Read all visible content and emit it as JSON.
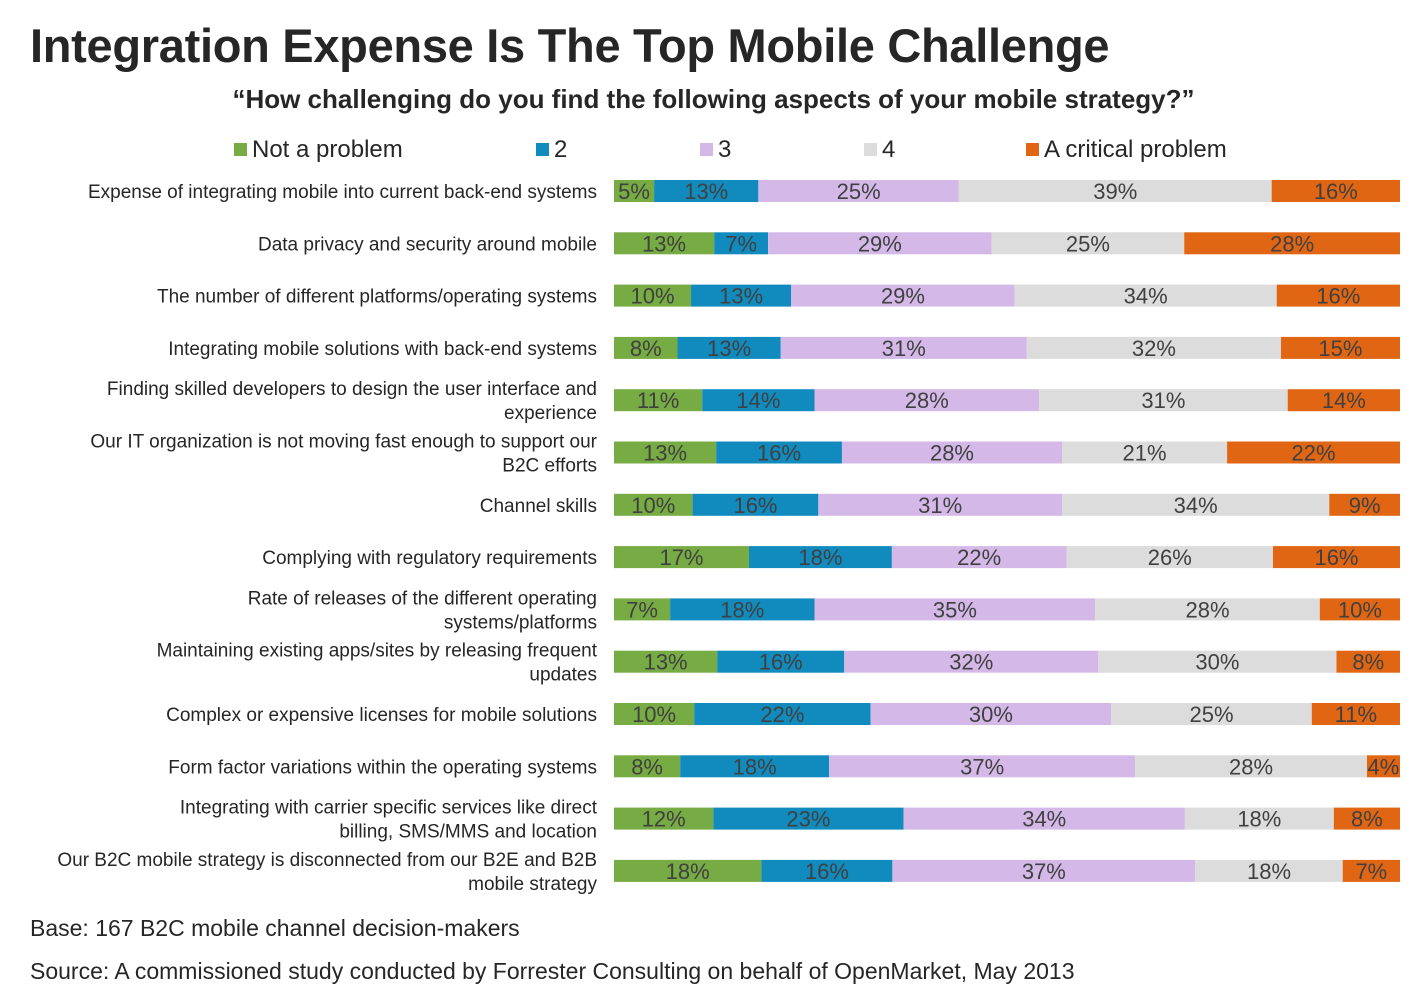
{
  "header": {
    "title": "Integration Expense Is The Top Mobile Challenge",
    "subtitle": "“How challenging do you find the following aspects of your mobile strategy?”"
  },
  "footer": {
    "base": "Base: 167 B2C mobile channel decision-makers",
    "source": "Source: A commissioned study conducted by Forrester Consulting on behalf of OpenMarket, May 2013"
  },
  "chart_data": {
    "type": "bar",
    "orientation": "horizontal",
    "stacked": true,
    "normalized": true,
    "legend_position": "top",
    "grid": false,
    "value_suffix": "%",
    "categories": [
      "Expense of integrating mobile into current back-end systems",
      "Data privacy and security around mobile",
      "The number of different platforms/operating systems",
      "Integrating mobile solutions with back-end systems",
      "Finding skilled developers to design the user interface and experience",
      "Our IT organization is not moving fast enough to support our B2C efforts",
      "Channel skills",
      "Complying with regulatory requirements",
      "Rate of releases of the different operating systems/platforms",
      "Maintaining existing apps/sites by releasing frequent updates",
      "Complex or expensive licenses for mobile solutions",
      "Form factor variations within the operating systems",
      "Integrating with carrier specific services like direct billing, SMS/MMS and location",
      "Our B2C mobile strategy is disconnected from our B2E and B2B mobile strategy"
    ],
    "series": [
      {
        "name": "Not a problem",
        "color": "#77ab43",
        "values": [
          5,
          13,
          10,
          8,
          11,
          13,
          10,
          17,
          7,
          13,
          10,
          8,
          12,
          18
        ]
      },
      {
        "name": "2",
        "color": "#118abd",
        "values": [
          13,
          7,
          13,
          13,
          14,
          16,
          16,
          18,
          18,
          16,
          22,
          18,
          23,
          16
        ]
      },
      {
        "name": "3",
        "color": "#d4b9e8",
        "values": [
          25,
          29,
          29,
          31,
          28,
          28,
          31,
          22,
          35,
          32,
          30,
          37,
          34,
          37
        ]
      },
      {
        "name": "4",
        "color": "#dcdcdc",
        "values": [
          39,
          25,
          34,
          32,
          31,
          21,
          34,
          26,
          28,
          30,
          25,
          28,
          18,
          18
        ]
      },
      {
        "name": "A critical problem",
        "color": "#e06614",
        "values": [
          16,
          28,
          16,
          15,
          14,
          22,
          9,
          16,
          10,
          8,
          11,
          4,
          8,
          7
        ]
      }
    ]
  }
}
